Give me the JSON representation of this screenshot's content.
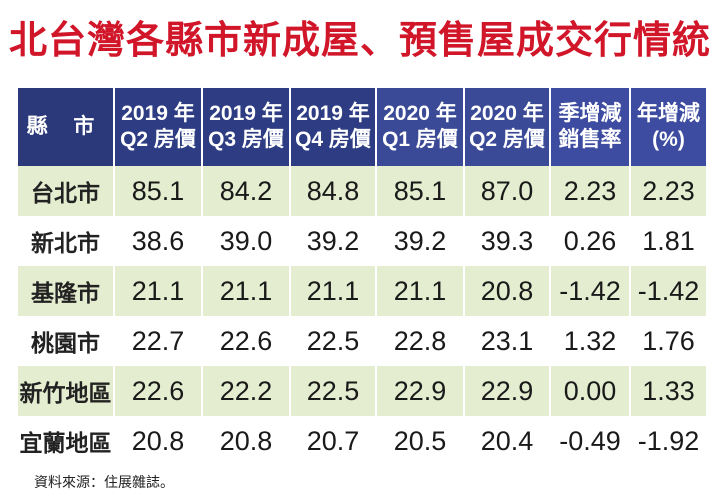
{
  "title": "北台灣各縣市新成屋、預售屋成交行情統計",
  "table": {
    "headers": [
      {
        "lines": [
          "縣 市"
        ]
      },
      {
        "lines": [
          "2019 年",
          "Q2 房價"
        ]
      },
      {
        "lines": [
          "2019 年",
          "Q3 房價"
        ]
      },
      {
        "lines": [
          "2019 年",
          "Q4 房價"
        ]
      },
      {
        "lines": [
          "2020 年",
          "Q1 房價"
        ]
      },
      {
        "lines": [
          "2020 年",
          "Q2 房價"
        ]
      },
      {
        "lines": [
          "季增減",
          "銷售率"
        ]
      },
      {
        "lines": [
          "年增減",
          "(%)"
        ]
      }
    ],
    "rows": [
      {
        "county": "台北市",
        "values": [
          "85.1",
          "84.2",
          "84.8",
          "85.1",
          "87.0"
        ],
        "qoq": "2.23",
        "yoy": "2.23"
      },
      {
        "county": "新北市",
        "values": [
          "38.6",
          "39.0",
          "39.2",
          "39.2",
          "39.3"
        ],
        "qoq": "0.26",
        "yoy": "1.81"
      },
      {
        "county": "基隆市",
        "values": [
          "21.1",
          "21.1",
          "21.1",
          "21.1",
          "20.8"
        ],
        "qoq": "-1.42",
        "yoy": "-1.42"
      },
      {
        "county": "桃園市",
        "values": [
          "22.7",
          "22.6",
          "22.5",
          "22.8",
          "23.1"
        ],
        "qoq": "1.32",
        "yoy": "1.76"
      },
      {
        "county": "新竹地區",
        "values": [
          "22.6",
          "22.2",
          "22.5",
          "22.9",
          "22.9"
        ],
        "qoq": "0.00",
        "yoy": "1.33"
      },
      {
        "county": "宜蘭地區",
        "values": [
          "20.8",
          "20.8",
          "20.7",
          "20.5",
          "20.4"
        ],
        "qoq": "-0.49",
        "yoy": "-1.92"
      }
    ]
  },
  "source": "資料來源：住展雜誌。",
  "colors": {
    "title": "#d1162a",
    "header_bg": "#2e3d83",
    "row_alt_bg": "#e4edcf",
    "positive": "#7a2a86",
    "negative": "#3a9a3a"
  }
}
